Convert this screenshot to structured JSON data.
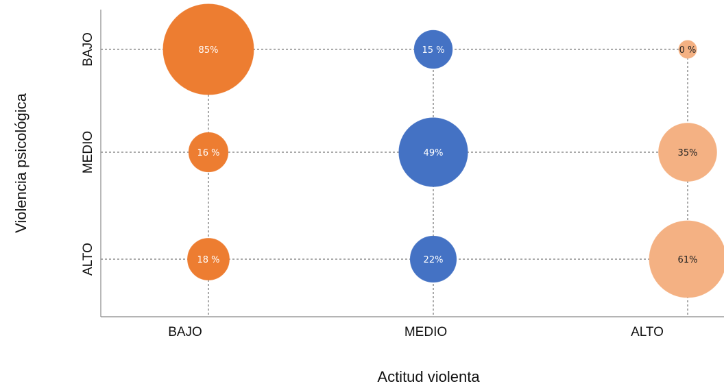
{
  "chart_data": {
    "type": "bubble",
    "x_axis": {
      "label": "Actitud violenta",
      "categories": [
        "BAJO",
        "MEDIO",
        "ALTO"
      ]
    },
    "y_axis": {
      "label": "Violencia psicológica",
      "categories": [
        "BAJO",
        "MEDIO",
        "ALTO"
      ]
    },
    "grid": true,
    "points": [
      {
        "x": "BAJO",
        "y": "BAJO",
        "value": 85,
        "label": "85%",
        "color": "#ED7D31",
        "label_color": "#ffffff"
      },
      {
        "x": "BAJO",
        "y": "MEDIO",
        "value": 16,
        "label": "16 %",
        "color": "#ED7D31",
        "label_color": "#ffffff"
      },
      {
        "x": "BAJO",
        "y": "ALTO",
        "value": 18,
        "label": "18 %",
        "color": "#ED7D31",
        "label_color": "#ffffff"
      },
      {
        "x": "MEDIO",
        "y": "BAJO",
        "value": 15,
        "label": "15 %",
        "color": "#4472C4",
        "label_color": "#ffffff"
      },
      {
        "x": "MEDIO",
        "y": "MEDIO",
        "value": 49,
        "label": "49%",
        "color": "#4472C4",
        "label_color": "#ffffff"
      },
      {
        "x": "MEDIO",
        "y": "ALTO",
        "value": 22,
        "label": "22%",
        "color": "#4472C4",
        "label_color": "#ffffff"
      },
      {
        "x": "ALTO",
        "y": "BAJO",
        "value": 0,
        "label": "0 %",
        "color": "#F4B183",
        "label_color": "#222222"
      },
      {
        "x": "ALTO",
        "y": "MEDIO",
        "value": 35,
        "label": "35%",
        "color": "#F4B183",
        "label_color": "#222222"
      },
      {
        "x": "ALTO",
        "y": "ALTO",
        "value": 61,
        "label": "61%",
        "color": "#F4B183",
        "label_color": "#222222"
      }
    ]
  }
}
